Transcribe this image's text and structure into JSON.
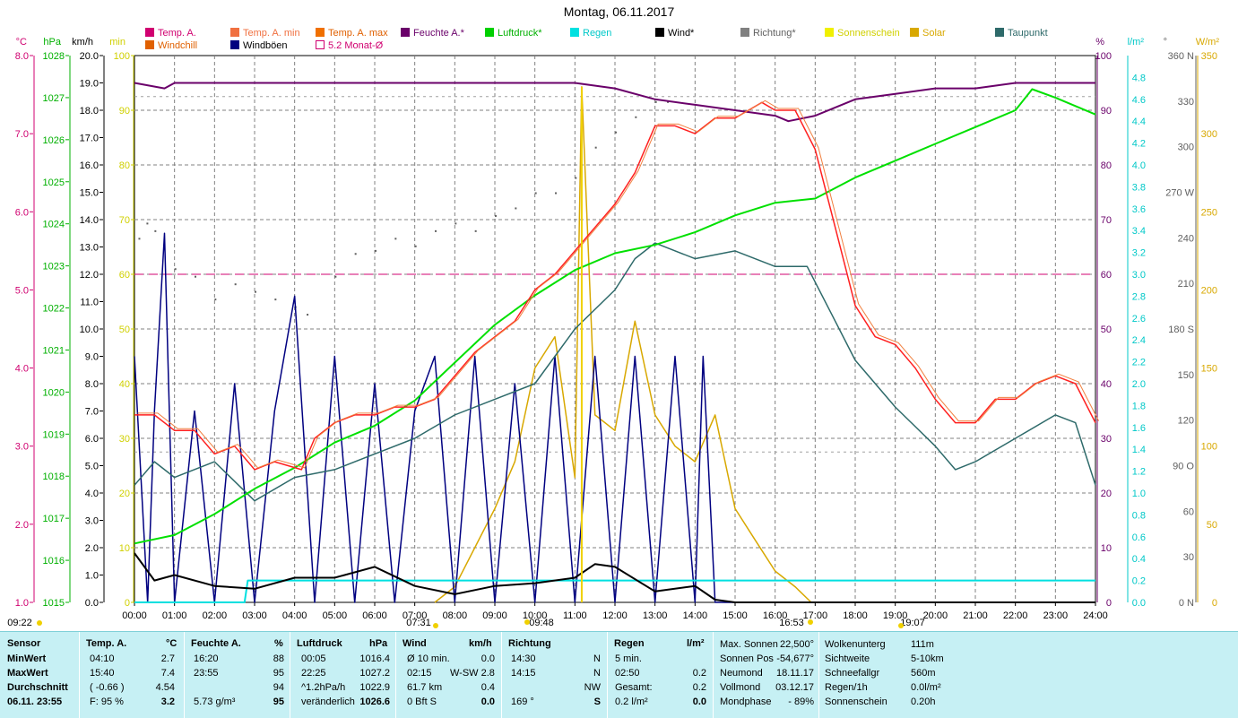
{
  "title": "Montag, 06.11.2017",
  "legend": [
    {
      "label": "Temp. A.",
      "color": "#d00070",
      "label_color": "#d00070"
    },
    {
      "label": "Windchill",
      "color": "#e06000",
      "label_color": "#e06000"
    },
    {
      "label": "Temp. A. min",
      "color": "#f07040",
      "label_color": "#f07040"
    },
    {
      "label": "Windböen",
      "color": "#000080",
      "label_color": "#000000"
    },
    {
      "label": "Temp. A. max",
      "color": "#f07000",
      "label_color": "#e06000"
    },
    {
      "label": "5.2 Monat-Ø",
      "color": "#ffffff",
      "label_color": "#d00070"
    },
    {
      "label": "Feuchte A.*",
      "color": "#6a006a",
      "label_color": "#6a006a"
    },
    {
      "label": "Luftdruck*",
      "color": "#00d000",
      "label_color": "#00b000"
    },
    {
      "label": "Regen",
      "color": "#00e0e0",
      "label_color": "#00c8c8"
    },
    {
      "label": "Wind*",
      "color": "#000000",
      "label_color": "#000000"
    },
    {
      "label": "Richtung*",
      "color": "#808080",
      "label_color": "#606060"
    },
    {
      "label": "Sonnenschein",
      "color": "#f0f000",
      "label_color": "#d0d000"
    },
    {
      "label": "Solar",
      "color": "#d8a800",
      "label_color": "#d8a800"
    },
    {
      "label": "Taupunkt",
      "color": "#2e6a6a",
      "label_color": "#2e6a6a"
    }
  ],
  "axes": {
    "units": {
      "temp": "°C",
      "press": "hPa",
      "wind": "km/h",
      "min": "min",
      "hum": "%",
      "rain": "l/m²",
      "dir": "°",
      "solar": "W/m²"
    },
    "temp_ticks": [
      "8.0",
      "7.0",
      "6.0",
      "5.0",
      "4.0",
      "3.0",
      "2.0",
      "1.0"
    ],
    "press_ticks": [
      "1028",
      "1027",
      "1026",
      "1025",
      "1024",
      "1023",
      "1022",
      "1021",
      "1020",
      "1019",
      "1018",
      "1017",
      "1016",
      "1015"
    ],
    "wind_ticks": [
      "20.0",
      "19.0",
      "18.0",
      "17.0",
      "16.0",
      "15.0",
      "14.0",
      "13.0",
      "12.0",
      "11.0",
      "10.0",
      "9.0",
      "8.0",
      "7.0",
      "6.0",
      "5.0",
      "4.0",
      "3.0",
      "2.0",
      "1.0",
      "0.0"
    ],
    "min_ticks": [
      "100",
      "90",
      "80",
      "70",
      "60",
      "50",
      "40",
      "30",
      "20",
      "10",
      "0"
    ],
    "hum_ticks": [
      "100",
      "90",
      "80",
      "70",
      "60",
      "50",
      "40",
      "30",
      "20",
      "10",
      "0"
    ],
    "rain_ticks": [
      "4.8",
      "4.6",
      "4.4",
      "4.2",
      "4.0",
      "3.8",
      "3.6",
      "3.4",
      "3.2",
      "3.0",
      "2.8",
      "2.6",
      "2.4",
      "2.2",
      "2.0",
      "1.8",
      "1.6",
      "1.4",
      "1.2",
      "1.0",
      "0.8",
      "0.6",
      "0.4",
      "0.2",
      "0.0"
    ],
    "dir_ticks": [
      "360 N",
      "330",
      "300",
      "270 W",
      "240",
      "210",
      "180 S",
      "150",
      "120",
      "90 O",
      "60",
      "30",
      "0 N"
    ],
    "solar_ticks": [
      "350",
      "300",
      "250",
      "200",
      "150",
      "100",
      "50",
      "0"
    ],
    "time_ticks": [
      "00:00",
      "01:00",
      "02:00",
      "03:00",
      "04:00",
      "05:00",
      "06:00",
      "07:00",
      "08:00",
      "09:00",
      "10:00",
      "11:00",
      "12:00",
      "13:00",
      "14:00",
      "15:00",
      "16:00",
      "17:00",
      "18:00",
      "19:00",
      "20:00",
      "21:00",
      "22:00",
      "23:00",
      "24:00"
    ],
    "markers": [
      "09:22",
      "07:31",
      "09:48",
      "16:53",
      "19:07"
    ]
  },
  "chart_data": {
    "type": "line",
    "title": "Montag, 06.11.2017",
    "x_unit": "hours",
    "ylim_temp": [
      1.0,
      8.0
    ],
    "ylim_press": [
      1015,
      1028
    ],
    "ylim_wind": [
      0,
      20
    ],
    "ylim_hum": [
      0,
      100
    ],
    "ylim_solar": [
      0,
      350
    ],
    "ylim_dir": [
      0,
      360
    ],
    "monthly_avg_temp": 5.2,
    "series": [
      {
        "name": "Temp. A.",
        "unit": "°C",
        "color": "#ff2020",
        "points": [
          [
            0,
            3.4
          ],
          [
            0.5,
            3.4
          ],
          [
            1,
            3.2
          ],
          [
            1.5,
            3.2
          ],
          [
            2,
            2.9
          ],
          [
            2.5,
            3.0
          ],
          [
            3,
            2.7
          ],
          [
            3.5,
            2.8
          ],
          [
            4.17,
            2.7
          ],
          [
            4.5,
            3.1
          ],
          [
            5,
            3.3
          ],
          [
            5.5,
            3.4
          ],
          [
            6,
            3.4
          ],
          [
            6.5,
            3.5
          ],
          [
            7,
            3.5
          ],
          [
            7.5,
            3.6
          ],
          [
            8,
            3.9
          ],
          [
            8.5,
            4.2
          ],
          [
            9,
            4.4
          ],
          [
            9.5,
            4.6
          ],
          [
            10,
            5.0
          ],
          [
            10.5,
            5.2
          ],
          [
            11,
            5.5
          ],
          [
            11.5,
            5.8
          ],
          [
            12,
            6.1
          ],
          [
            12.5,
            6.5
          ],
          [
            13,
            7.1
          ],
          [
            13.5,
            7.1
          ],
          [
            14,
            7.0
          ],
          [
            14.5,
            7.2
          ],
          [
            15,
            7.2
          ],
          [
            15.67,
            7.4
          ],
          [
            16,
            7.3
          ],
          [
            16.5,
            7.3
          ],
          [
            17,
            6.8
          ],
          [
            17.5,
            5.8
          ],
          [
            18,
            4.8
          ],
          [
            18.5,
            4.4
          ],
          [
            19,
            4.3
          ],
          [
            19.5,
            4.0
          ],
          [
            20,
            3.6
          ],
          [
            20.5,
            3.3
          ],
          [
            21,
            3.3
          ],
          [
            21.5,
            3.6
          ],
          [
            22,
            3.6
          ],
          [
            22.5,
            3.8
          ],
          [
            23,
            3.9
          ],
          [
            23.5,
            3.8
          ],
          [
            24,
            3.3
          ]
        ]
      },
      {
        "name": "Feuchte A.*",
        "unit": "%",
        "color": "#6a006a",
        "points": [
          [
            0,
            95
          ],
          [
            0.75,
            94
          ],
          [
            1,
            95
          ],
          [
            2,
            95
          ],
          [
            4,
            95
          ],
          [
            6,
            95
          ],
          [
            8,
            95
          ],
          [
            10,
            95
          ],
          [
            11,
            95
          ],
          [
            12,
            94
          ],
          [
            13,
            92
          ],
          [
            14,
            91
          ],
          [
            15,
            90
          ],
          [
            16,
            89
          ],
          [
            16.33,
            88
          ],
          [
            17,
            89
          ],
          [
            18,
            92
          ],
          [
            19,
            93
          ],
          [
            20,
            94
          ],
          [
            21,
            94
          ],
          [
            22,
            95
          ],
          [
            23,
            95
          ],
          [
            24,
            95
          ]
        ]
      },
      {
        "name": "Luftdruck*",
        "unit": "hPa",
        "color": "#00e000",
        "points": [
          [
            0,
            1016.4
          ],
          [
            1,
            1016.6
          ],
          [
            2,
            1017.1
          ],
          [
            3,
            1017.7
          ],
          [
            4,
            1018.2
          ],
          [
            5,
            1018.8
          ],
          [
            6,
            1019.2
          ],
          [
            7,
            1019.8
          ],
          [
            8,
            1020.7
          ],
          [
            9,
            1021.6
          ],
          [
            10,
            1022.3
          ],
          [
            11,
            1022.9
          ],
          [
            12,
            1023.3
          ],
          [
            13,
            1023.5
          ],
          [
            14,
            1023.8
          ],
          [
            15,
            1024.2
          ],
          [
            16,
            1024.5
          ],
          [
            17,
            1024.6
          ],
          [
            18,
            1025.1
          ],
          [
            19,
            1025.5
          ],
          [
            20,
            1025.9
          ],
          [
            21,
            1026.3
          ],
          [
            22,
            1026.7
          ],
          [
            22.42,
            1027.2
          ],
          [
            23,
            1027.0
          ],
          [
            24,
            1026.6
          ]
        ]
      },
      {
        "name": "Taupunkt",
        "unit": "°C",
        "color": "#2e6a6a",
        "points": [
          [
            0,
            2.5
          ],
          [
            0.5,
            2.8
          ],
          [
            1,
            2.6
          ],
          [
            2,
            2.8
          ],
          [
            3,
            2.3
          ],
          [
            4,
            2.6
          ],
          [
            5,
            2.7
          ],
          [
            6,
            2.9
          ],
          [
            7,
            3.1
          ],
          [
            8,
            3.4
          ],
          [
            9,
            3.6
          ],
          [
            10,
            3.8
          ],
          [
            11,
            4.5
          ],
          [
            12,
            5.0
          ],
          [
            12.5,
            5.4
          ],
          [
            13,
            5.6
          ],
          [
            14,
            5.4
          ],
          [
            15,
            5.5
          ],
          [
            16,
            5.3
          ],
          [
            16.8,
            5.3
          ],
          [
            17.5,
            4.6
          ],
          [
            18,
            4.1
          ],
          [
            19,
            3.5
          ],
          [
            20,
            3.0
          ],
          [
            20.5,
            2.7
          ],
          [
            21,
            2.8
          ],
          [
            22,
            3.1
          ],
          [
            23,
            3.4
          ],
          [
            23.5,
            3.3
          ],
          [
            24,
            2.5
          ]
        ]
      },
      {
        "name": "Wind*",
        "unit": "km/h",
        "color": "#000000",
        "points": [
          [
            0,
            1.8
          ],
          [
            0.5,
            0.8
          ],
          [
            1,
            1.0
          ],
          [
            2,
            0.6
          ],
          [
            3,
            0.5
          ],
          [
            4,
            0.9
          ],
          [
            5,
            0.9
          ],
          [
            6,
            1.3
          ],
          [
            7,
            0.6
          ],
          [
            8,
            0.3
          ],
          [
            9,
            0.6
          ],
          [
            10,
            0.7
          ],
          [
            11,
            0.9
          ],
          [
            11.5,
            1.4
          ],
          [
            12,
            1.3
          ],
          [
            13,
            0.4
          ],
          [
            14,
            0.6
          ],
          [
            14.5,
            0.1
          ],
          [
            15,
            0.0
          ],
          [
            24,
            0.0
          ]
        ]
      },
      {
        "name": "Windböen",
        "unit": "km/h",
        "color": "#000080",
        "points": [
          [
            0,
            9.0
          ],
          [
            0.33,
            0.0
          ],
          [
            0.5,
            7.0
          ],
          [
            0.75,
            13.5
          ],
          [
            1,
            0.0
          ],
          [
            1.5,
            7.0
          ],
          [
            2,
            0.0
          ],
          [
            2.5,
            8.0
          ],
          [
            3,
            0.0
          ],
          [
            3.5,
            7.0
          ],
          [
            4,
            11.2
          ],
          [
            4.5,
            0.0
          ],
          [
            5,
            9.0
          ],
          [
            5.5,
            0.0
          ],
          [
            6,
            8.0
          ],
          [
            6.5,
            0.0
          ],
          [
            7,
            7.0
          ],
          [
            7.5,
            9.0
          ],
          [
            8,
            0.0
          ],
          [
            8.5,
            9.0
          ],
          [
            9,
            0.0
          ],
          [
            9.5,
            8.0
          ],
          [
            10,
            0.0
          ],
          [
            10.5,
            9.0
          ],
          [
            11,
            0.0
          ],
          [
            11.5,
            9.0
          ],
          [
            12,
            0.0
          ],
          [
            12.5,
            9.0
          ],
          [
            13,
            0.0
          ],
          [
            13.5,
            9.0
          ],
          [
            14,
            0.0
          ],
          [
            14.2,
            9.0
          ],
          [
            14.5,
            0.0
          ],
          [
            24,
            0.0
          ]
        ]
      },
      {
        "name": "Regen",
        "unit": "l/m²",
        "color": "#00e0e0",
        "points": [
          [
            0,
            0.0
          ],
          [
            2.75,
            0.0
          ],
          [
            2.83,
            0.2
          ],
          [
            24,
            0.2
          ]
        ]
      },
      {
        "name": "Solar",
        "unit": "W/m²",
        "color": "#d8a800",
        "points": [
          [
            7.5,
            0.0
          ],
          [
            8,
            10
          ],
          [
            9,
            60
          ],
          [
            9.5,
            90
          ],
          [
            10,
            150
          ],
          [
            10.5,
            170
          ],
          [
            11,
            80
          ],
          [
            11.17,
            330
          ],
          [
            11.5,
            120
          ],
          [
            12,
            110
          ],
          [
            12.5,
            180
          ],
          [
            13,
            120
          ],
          [
            13.5,
            100
          ],
          [
            14,
            90
          ],
          [
            14.5,
            120
          ],
          [
            15,
            60
          ],
          [
            15.5,
            40
          ],
          [
            16,
            20
          ],
          [
            16.5,
            10
          ],
          [
            16.9,
            0.0
          ]
        ]
      }
    ]
  },
  "stats": {
    "headers": {
      "sensor": "Sensor",
      "temp": "Temp. A.",
      "temp_unit": "°C",
      "hum": "Feuchte A.",
      "hum_unit": "%",
      "press": "Luftdruck",
      "press_unit": "hPa",
      "wind": "Wind",
      "wind_unit": "km/h",
      "dir": "Richtung",
      "rain": "Regen",
      "rain_unit": "l/m²"
    },
    "rows": [
      {
        "label": "MinWert",
        "temp_time": "04:10",
        "temp_val": "2.7",
        "hum_time": "16:20",
        "hum_val": "88",
        "press_time": "00:05",
        "press_val": "1016.4",
        "wind_label": "Ø 10 min.",
        "wind_val": "0.0",
        "dir_time": "14:30",
        "dir_val": "N",
        "rain_label": "5 min.",
        "rain_val": ""
      },
      {
        "label": "MaxWert",
        "temp_time": "15:40",
        "temp_val": "7.4",
        "hum_time": "23:55",
        "hum_val": "95",
        "press_time": "22:25",
        "press_val": "1027.2",
        "wind_label": "02:15",
        "wind_mid": "W-SW 2.8",
        "wind_val": "",
        "dir_time": "14:15",
        "dir_val": "N",
        "rain_label": "02:50",
        "rain_val": "0.2"
      },
      {
        "label": "Durchschnitt",
        "temp_time": "( -0.66 )",
        "temp_val": "4.54",
        "hum_time": "",
        "hum_val": "94",
        "press_time": "^1.2hPa/h",
        "press_val": "1022.9",
        "wind_label": "61.7 km",
        "wind_val": "0.4",
        "dir_time": "",
        "dir_val": "NW",
        "rain_label": "Gesamt:",
        "rain_val": "0.2"
      },
      {
        "label": "06.11. 23:55",
        "temp_time": "F: 95 %",
        "temp_val": "3.2",
        "hum_time": "5.73 g/m³",
        "hum_val": "95",
        "press_time": "veränderlich",
        "press_val": "1026.6",
        "wind_label": "0 Bft S",
        "wind_val": "0.0",
        "dir_time": "169 °",
        "dir_val": "S",
        "rain_label": "0.2 l/m²",
        "rain_val": "0.0"
      }
    ],
    "astro": [
      {
        "label": "Max. Sonnen",
        "value": "22,500°"
      },
      {
        "label": "Sonnen Pos",
        "value": "-54,677°"
      },
      {
        "label": "Neumond",
        "value": "18.11.17"
      },
      {
        "label": "Vollmond",
        "value": "03.12.17"
      },
      {
        "label": "Mondphase",
        "value": "- 89%"
      }
    ],
    "misc": [
      {
        "label": "Wolkenunterg",
        "value": "111m"
      },
      {
        "label": "Sichtweite",
        "value": "5-10km"
      },
      {
        "label": "Schneefallgr",
        "value": "560m"
      },
      {
        "label": "Regen/1h",
        "value": "0.0l/m²"
      },
      {
        "label": "Sonnenschein",
        "value": "0.20h"
      }
    ]
  }
}
